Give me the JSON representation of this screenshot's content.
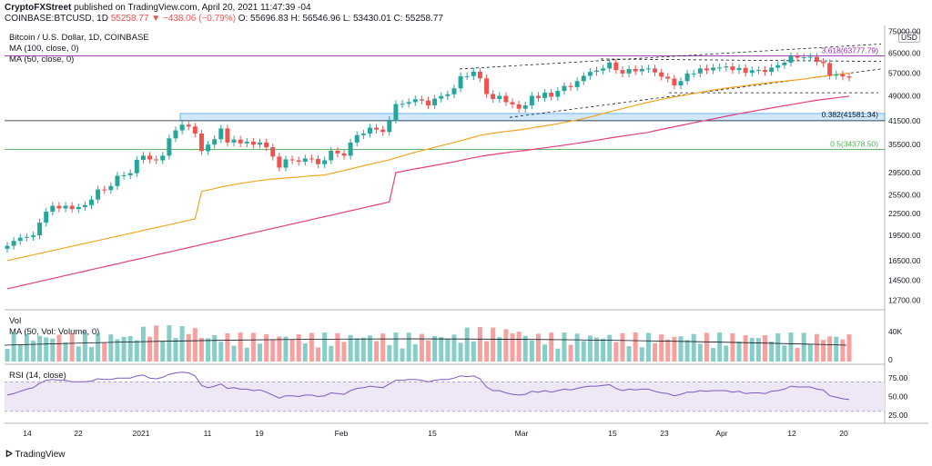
{
  "header": {
    "line1_author": "CryptoFXStreet",
    "line1_text": "published on TradingView.com, April 20, 2021 11:47:39 -04",
    "line2_symbol": "COINBASE:BTCUSD, 1D",
    "line2_price": "55258.77",
    "line2_change": "▼ −438.06 (−0.79%)",
    "line2_o": "O: 55696.83",
    "line2_h": "H: 56546.96",
    "line2_l": "L: 53430.01",
    "line2_c": "C: 55258.77"
  },
  "legend": {
    "title": "Bitcoin / U.S. Dollar, 1D, COINBASE",
    "ma100": "MA (100, close, 0)",
    "ma50": "MA (50, close, 0)",
    "vol": "Vol",
    "vol_ma": "MA (50, Vol: Volume, 0)",
    "rsi": "RSI (14, close)"
  },
  "currency_badge": "USD",
  "footer": "TradingView",
  "annotations": {
    "fib_3618": "3.618(63777.79)",
    "fib_0382": "0.382(41581.34)",
    "fib_05": "0.5(34378.50)"
  },
  "colors": {
    "up": "#26a69a",
    "down": "#ef5350",
    "ma50": "#f5a623",
    "ma100": "#e63d7a",
    "rsi": "#7e57c2",
    "rsi_band": "#ede7f6",
    "fib_3618": "#9c27b0",
    "fib_05": "#4caf50",
    "zone": "#bbdefb"
  },
  "chart_data": {
    "type": "candlestick",
    "scale": "log",
    "price_axis_ticks": [
      75000,
      65000,
      57000,
      49000,
      41500,
      35500,
      29500,
      25500,
      22500,
      19500,
      16500,
      14500,
      12700
    ],
    "price_axis_labels": [
      "75000.00",
      "65000.00",
      "57000.00",
      "49000.00",
      "41500.00",
      "35500.00",
      "29500.00",
      "25500.00",
      "22500.00",
      "19500.00",
      "16500.00",
      "14500.00",
      "12700.00"
    ],
    "x_axis_labels": [
      "14",
      "22",
      "2021",
      "11",
      "19",
      "Feb",
      "15",
      "Mar",
      "15",
      "23",
      "Apr",
      "12",
      "20"
    ],
    "closes": [
      18200,
      18800,
      19200,
      19300,
      19500,
      21200,
      22800,
      23700,
      23300,
      23700,
      23200,
      23500,
      23800,
      24700,
      26400,
      26300,
      27000,
      28900,
      29000,
      29400,
      32100,
      33000,
      32200,
      32000,
      33000,
      37000,
      39000,
      40500,
      40000,
      38200,
      34000,
      35500,
      36800,
      39500,
      36000,
      36700,
      35800,
      36200,
      35500,
      36000,
      34900,
      32800,
      30500,
      32200,
      32000,
      31700,
      32400,
      32300,
      31200,
      32000,
      34100,
      33500,
      33000,
      36000,
      37800,
      38200,
      39700,
      39200,
      38600,
      41800,
      46400,
      46500,
      47000,
      47900,
      47500,
      46000,
      48100,
      48900,
      49500,
      51500,
      55800,
      55800,
      57500,
      55000,
      49600,
      48000,
      49000,
      47000,
      46300,
      45000,
      46000,
      49000,
      48300,
      50000,
      48700,
      50600,
      52300,
      51900,
      54000,
      55900,
      57400,
      57900,
      58700,
      61100,
      58100,
      56800,
      58500,
      57600,
      58500,
      58700,
      57200,
      55600,
      54900,
      52500,
      54000,
      56800,
      56800,
      58700,
      58000,
      59000,
      59100,
      59500,
      58100,
      58900,
      57000,
      58000,
      58100,
      57400,
      59000,
      60000,
      61000,
      63600,
      63000,
      63200,
      63400,
      61300,
      60800,
      56000,
      56500,
      55700,
      55259
    ],
    "ma50_start": 16500,
    "ma50_end": 56700,
    "ma100_start": 13700,
    "ma100_end": 48500,
    "fib_levels": [
      63777.79,
      41581.34,
      34378.5
    ],
    "horizontal_lines": [
      50000,
      41581.34
    ],
    "volume_axis_labels": [
      "40K",
      "0"
    ],
    "rsi_axis_labels": [
      "75.00",
      "50.00",
      "25.00"
    ],
    "rsi_band": [
      30,
      70
    ],
    "rsi_values": [
      52,
      54,
      57,
      60,
      62,
      68,
      72,
      73,
      72,
      72,
      70,
      70,
      70,
      71,
      74,
      73,
      73,
      75,
      75,
      75,
      78,
      79,
      75,
      74,
      76,
      80,
      82,
      83,
      82,
      78,
      65,
      62,
      64,
      67,
      61,
      62,
      60,
      60,
      58,
      59,
      56,
      52,
      48,
      51,
      51,
      50,
      52,
      52,
      50,
      51,
      55,
      54,
      53,
      58,
      61,
      62,
      64,
      63,
      62,
      67,
      72,
      72,
      73,
      73,
      72,
      70,
      72,
      73,
      73,
      75,
      78,
      77,
      78,
      74,
      63,
      58,
      58,
      55,
      53,
      52,
      53,
      57,
      56,
      58,
      56,
      58,
      60,
      59,
      61,
      63,
      64,
      64,
      65,
      66,
      61,
      58,
      60,
      59,
      60,
      60,
      57,
      55,
      54,
      51,
      53,
      56,
      56,
      58,
      57,
      58,
      58,
      58,
      56,
      57,
      54,
      55,
      55,
      54,
      57,
      58,
      60,
      64,
      63,
      63,
      63,
      60,
      59,
      51,
      49,
      47,
      46
    ]
  }
}
